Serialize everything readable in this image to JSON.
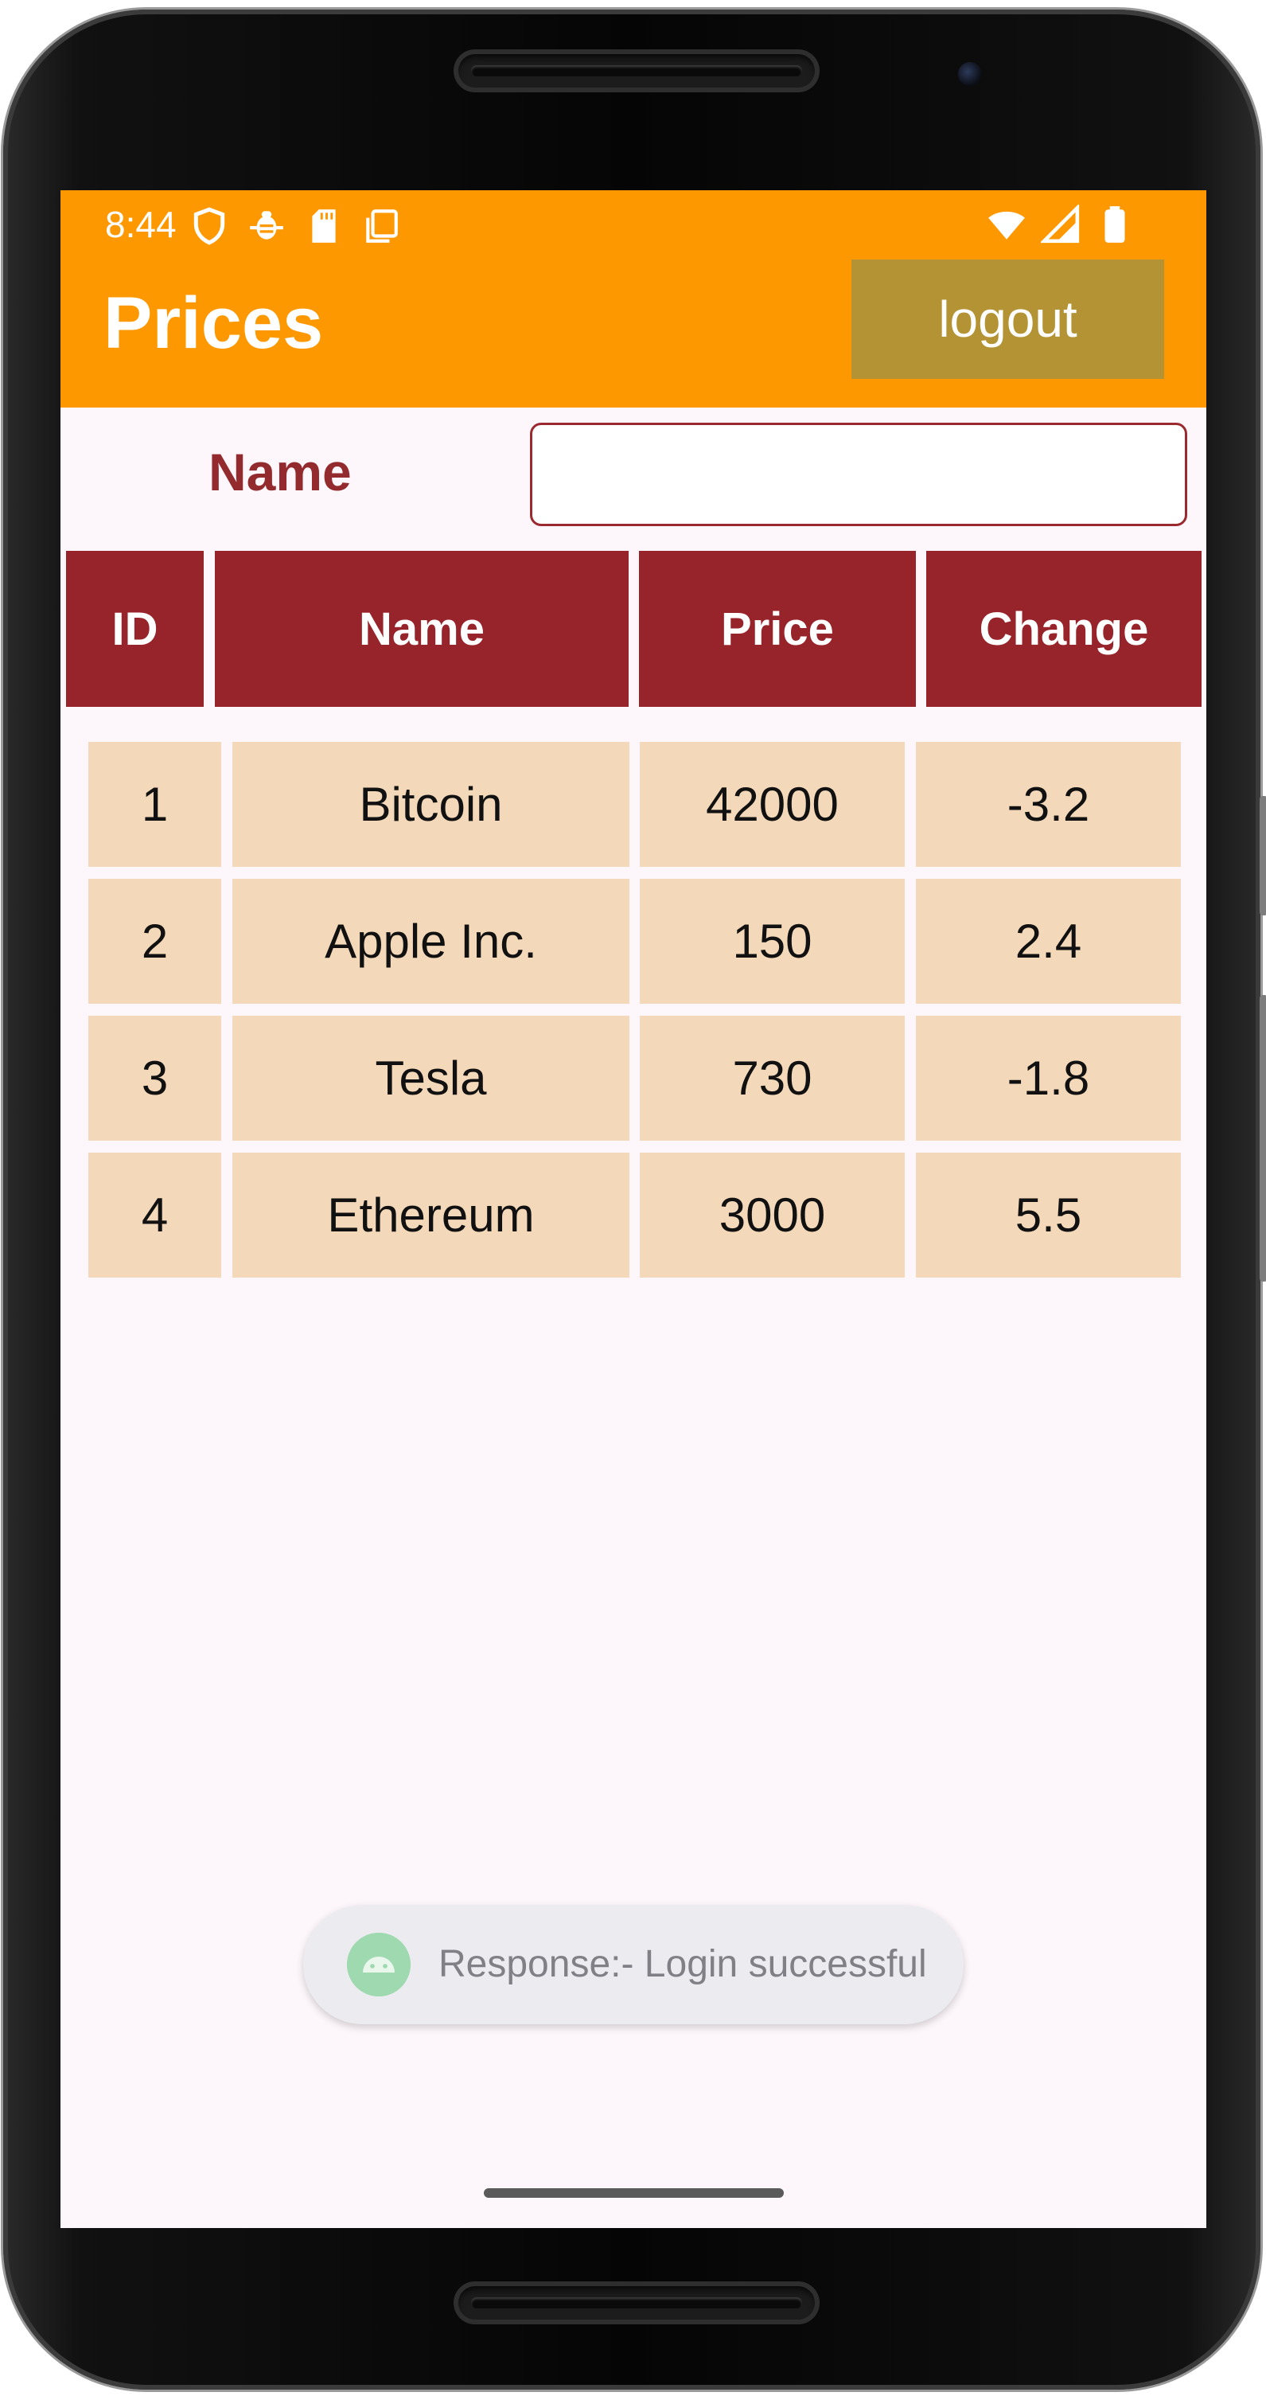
{
  "status_bar": {
    "time": "8:44",
    "icons_left": [
      "shield-icon",
      "bug-icon",
      "sd-card-icon",
      "screenshot-icon"
    ],
    "icons_right": [
      "wifi-icon",
      "signal-icon",
      "battery-icon"
    ]
  },
  "app_bar": {
    "title": "Prices",
    "logout_label": "logout",
    "bar_color": "#fe9800",
    "button_color": "#b49334"
  },
  "filter": {
    "label": "Name",
    "value": "",
    "placeholder": ""
  },
  "table": {
    "header_color": "#98242b",
    "cell_color": "#f3d8b9",
    "columns": [
      "ID",
      "Name",
      "Price",
      "Change"
    ],
    "rows": [
      [
        "1",
        "Bitcoin",
        "42000",
        "-3.2"
      ],
      [
        "2",
        "Apple Inc.",
        "150",
        "2.4"
      ],
      [
        "3",
        "Tesla",
        "730",
        "-1.8"
      ],
      [
        "4",
        "Ethereum",
        "3000",
        "5.5"
      ]
    ]
  },
  "toast": {
    "icon": "android-icon",
    "message": "Response:- Login successful"
  }
}
